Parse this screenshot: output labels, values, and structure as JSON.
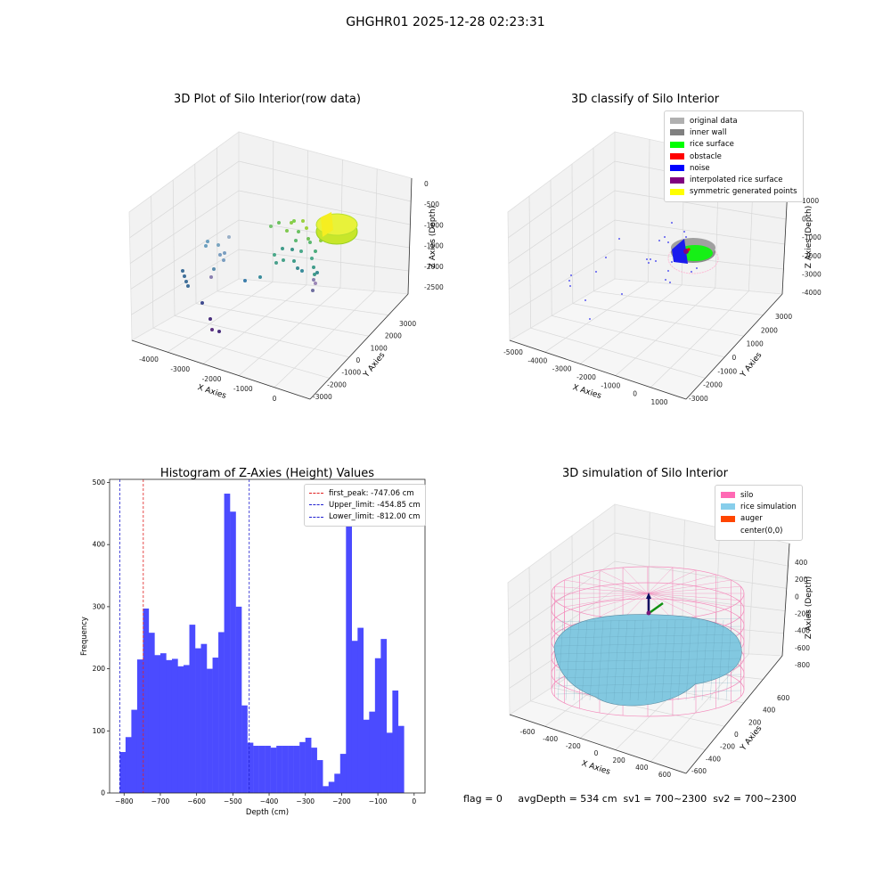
{
  "figure_title": "GHGHR01 2025-12-28 02:23:31",
  "status_line": "flag = 0     avgDepth = 534 cm  sv1 = 700~2300  sv2 = 700~2300",
  "colors": {
    "histogram_bar": "#4b4bff",
    "first_peak": "#e02020",
    "limits": "#2020d0",
    "pane": "#f2f2f2",
    "silo_wire": "#f48cbc",
    "rice": "#82c8e0"
  },
  "panels": {
    "raw": {
      "title": "3D Plot of Silo Interior(row data)",
      "xlabel": "X Axies",
      "ylabel": "Y Axies",
      "zlabel": "Z Axies (Depth)",
      "xticks": [
        "-4000",
        "-3000",
        "-2000",
        "-1000",
        "0"
      ],
      "yticks": [
        "3000",
        "2000",
        "1000",
        "0",
        "-1000",
        "-2000",
        "-3000"
      ],
      "zticks": [
        "0",
        "-500",
        "-1000",
        "-1500",
        "-2000",
        "-2500"
      ]
    },
    "classify": {
      "title": "3D classify of Silo Interior",
      "xlabel": "X Axies",
      "ylabel": "Y Axies",
      "zlabel": "Z Axies (Depth)",
      "xticks": [
        "-5000",
        "-4000",
        "-3000",
        "-2000",
        "-1000",
        "0",
        "1000"
      ],
      "yticks": [
        "3000",
        "2000",
        "1000",
        "0",
        "-1000",
        "-2000",
        "-3000"
      ],
      "zticks": [
        "1000",
        "0",
        "-1000",
        "-2000",
        "-3000",
        "-4000"
      ],
      "legend": [
        {
          "label": "original data",
          "color": "#b0b0b0"
        },
        {
          "label": "inner wall",
          "color": "#808080"
        },
        {
          "label": "rice surface",
          "color": "#00ff00"
        },
        {
          "label": "obstacle",
          "color": "#ff0000"
        },
        {
          "label": "noise",
          "color": "#0000ff"
        },
        {
          "label": "interpolated rice surface",
          "color": "#800080"
        },
        {
          "label": "symmetric generated points",
          "color": "#ffff00"
        }
      ]
    },
    "simulation": {
      "title": "3D simulation of Silo Interior",
      "xlabel": "X Axies",
      "ylabel": "Y Axies",
      "zlabel": "Z Axies (Depth)",
      "xticks": [
        "-600",
        "-400",
        "-200",
        "0",
        "200",
        "400",
        "600"
      ],
      "yticks": [
        "600",
        "400",
        "200",
        "0",
        "-200",
        "-400",
        "-600"
      ],
      "zticks": [
        "400",
        "200",
        "0",
        "-200",
        "-400",
        "-600",
        "-800"
      ],
      "legend": [
        {
          "label": "silo",
          "color": "#ff69b4"
        },
        {
          "label": "rice simulation",
          "color": "#87ceeb"
        },
        {
          "label": "auger",
          "color": "#ff4500"
        },
        {
          "label": "center(0,0)",
          "color": ""
        }
      ]
    }
  },
  "chart_data": {
    "type": "bar",
    "title": "Histogram of Z-Axies (Height) Values",
    "xlabel": "Depth (cm)",
    "ylabel": "Frequency",
    "xlim": [
      -840,
      30
    ],
    "ylim": [
      0,
      505
    ],
    "xticks": [
      -800,
      -700,
      -600,
      -500,
      -400,
      -300,
      -200,
      -100,
      0
    ],
    "yticks": [
      0,
      100,
      200,
      300,
      400,
      500
    ],
    "bin_start": -812,
    "bin_width": 16,
    "values": [
      66,
      90,
      134,
      215,
      297,
      258,
      222,
      225,
      214,
      216,
      204,
      206,
      271,
      233,
      240,
      200,
      218,
      259,
      482,
      453,
      300,
      141,
      81,
      76,
      76,
      76,
      73,
      76,
      76,
      76,
      76,
      82,
      89,
      73,
      53,
      11,
      18,
      31,
      63,
      436,
      245,
      266,
      118,
      131,
      217,
      248,
      97,
      165,
      108
    ],
    "lines": [
      {
        "name": "first_peak",
        "label": "first_peak: -747.06 cm",
        "x": -747.06,
        "color": "#e02020"
      },
      {
        "name": "upper_limit",
        "label": "Upper_limit: -454.85 cm",
        "x": -454.85,
        "color": "#2020d0"
      },
      {
        "name": "lower_limit",
        "label": "Lower_limit: -812.00 cm",
        "x": -812.0,
        "color": "#2020d0"
      }
    ]
  }
}
